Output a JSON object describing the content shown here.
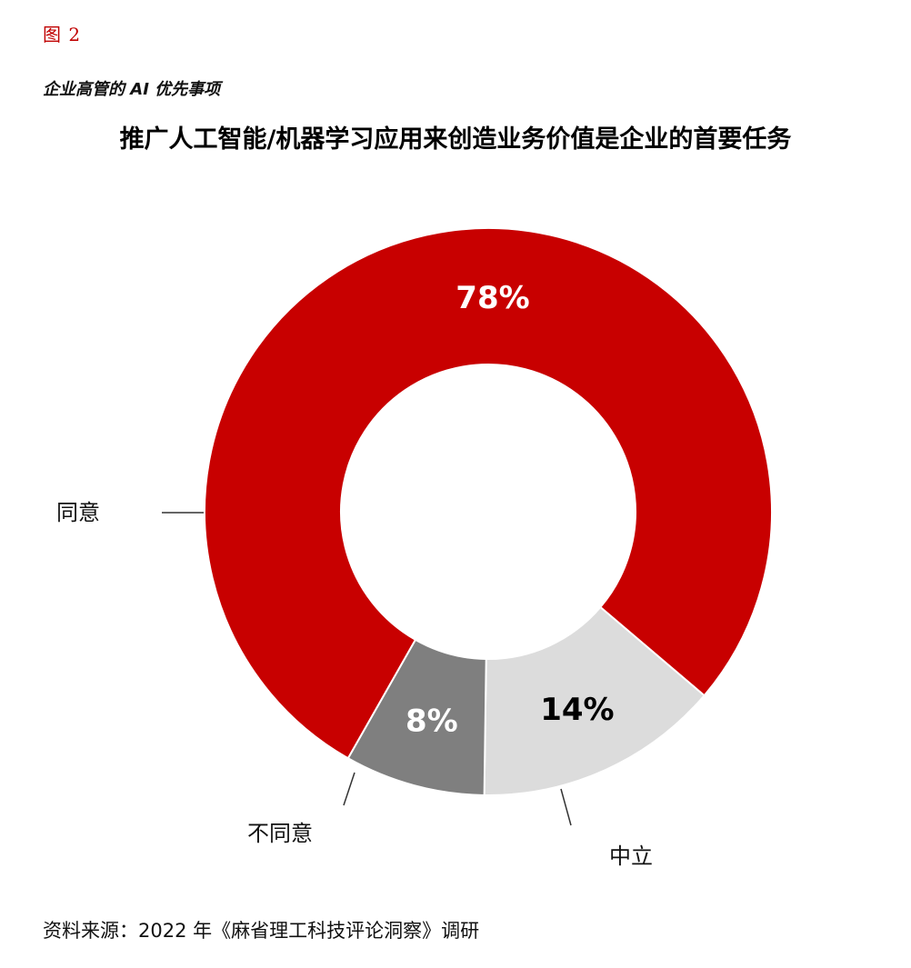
{
  "header": {
    "figure_label": "图 2",
    "subtitle": "企业高管的 AI 优先事项",
    "title": "推广人工智能/机器学习应用来创造业务价值是企业的首要任务"
  },
  "chart_data": {
    "type": "pie",
    "variant": "donut",
    "title": "推广人工智能/机器学习应用来创造业务价值是企业的首要任务",
    "slices": [
      {
        "label": "同意",
        "value": 78,
        "display": "78%",
        "color": "#c80000",
        "text_color": "#ffffff"
      },
      {
        "label": "中立",
        "value": 14,
        "display": "14%",
        "color": "#dcdcdc",
        "text_color": "#000000"
      },
      {
        "label": "不同意",
        "value": 8,
        "display": "8%",
        "color": "#7f7f7f",
        "text_color": "#ffffff"
      }
    ],
    "legend": "none"
  },
  "footer": {
    "source": "资料来源：2022 年《麻省理工科技评论洞察》调研"
  }
}
